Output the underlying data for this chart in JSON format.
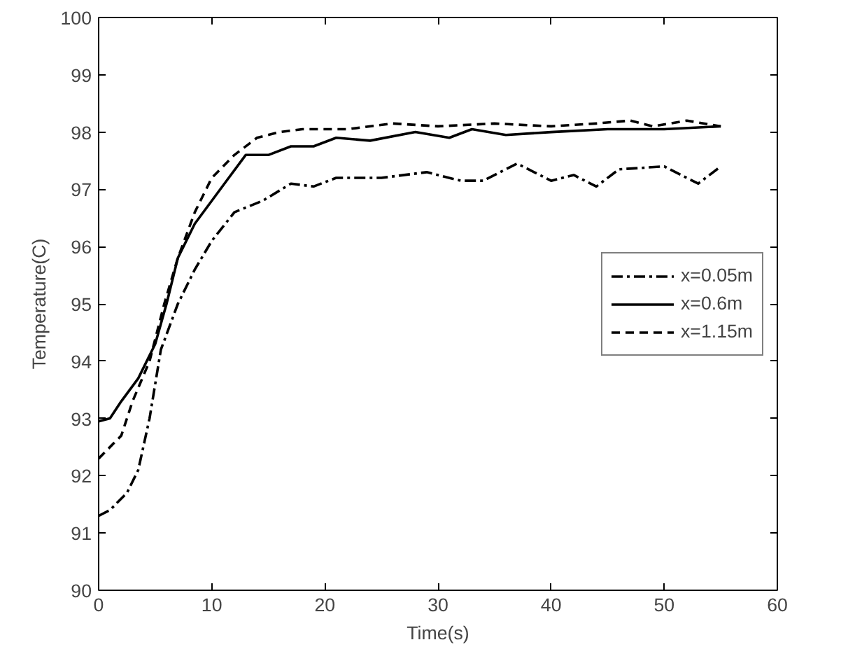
{
  "chart_data": {
    "type": "line",
    "xlabel": "Time(s)",
    "ylabel": "Temperature(C)",
    "xlim": [
      0,
      60
    ],
    "xticks": [
      0,
      10,
      20,
      30,
      40,
      50,
      60
    ],
    "ylim": [
      90,
      100
    ],
    "yticks": [
      90,
      91,
      92,
      93,
      94,
      95,
      96,
      97,
      98,
      99,
      100
    ],
    "grid": false,
    "legend": "right",
    "marker": "none",
    "series": [
      {
        "name": "x=0.05m",
        "color": "#000000",
        "line_style": "dashdot",
        "x": [
          0,
          1,
          2.5,
          3.5,
          4.5,
          5.5,
          7,
          8.5,
          10,
          12,
          14.5,
          17,
          19,
          21,
          25,
          29,
          32,
          34,
          37,
          40,
          42,
          44,
          46,
          50,
          53,
          55
        ],
        "values": [
          91.3,
          91.4,
          91.7,
          92.1,
          93.0,
          94.2,
          95.0,
          95.6,
          96.1,
          96.6,
          96.8,
          97.1,
          97.05,
          97.2,
          97.2,
          97.3,
          97.15,
          97.15,
          97.45,
          97.15,
          97.25,
          97.05,
          97.35,
          97.4,
          97.1,
          97.4
        ]
      },
      {
        "name": "x=0.6m",
        "color": "#000000",
        "line_style": "solid",
        "x": [
          0,
          1,
          2,
          3.5,
          5,
          6,
          7,
          8.5,
          10,
          11.5,
          13,
          15,
          17,
          19,
          21,
          24,
          28,
          31,
          33,
          36,
          40,
          45,
          50,
          55
        ],
        "values": [
          92.95,
          93.0,
          93.3,
          93.7,
          94.3,
          95.0,
          95.8,
          96.4,
          96.8,
          97.2,
          97.6,
          97.6,
          97.75,
          97.75,
          97.9,
          97.85,
          98.0,
          97.9,
          98.05,
          97.95,
          98.0,
          98.05,
          98.05,
          98.1
        ]
      },
      {
        "name": "x=1.15m",
        "color": "#000000",
        "line_style": "dashed",
        "x": [
          0,
          2,
          3,
          4.5,
          5.8,
          7,
          8.5,
          10,
          12,
          14,
          16,
          18,
          22,
          26,
          30,
          35,
          40,
          44,
          47,
          49,
          52,
          55
        ],
        "values": [
          92.3,
          92.7,
          93.3,
          94.0,
          95.0,
          95.8,
          96.6,
          97.2,
          97.6,
          97.9,
          98.0,
          98.05,
          98.05,
          98.15,
          98.1,
          98.15,
          98.1,
          98.15,
          98.2,
          98.1,
          98.2,
          98.1
        ]
      }
    ]
  }
}
